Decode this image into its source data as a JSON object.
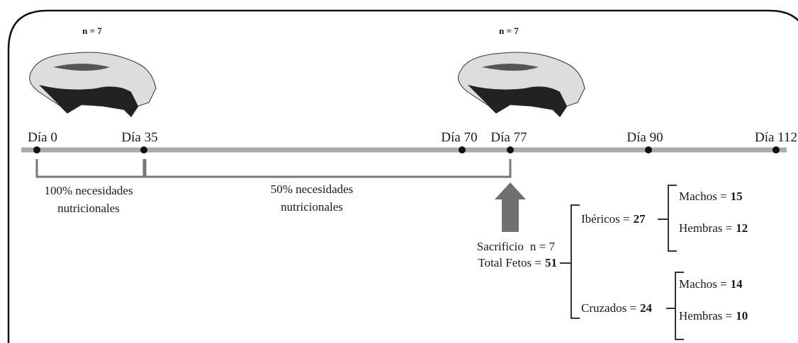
{
  "pigs": [
    {
      "label": "n = 7"
    },
    {
      "label": "n = 7"
    }
  ],
  "timeline": {
    "points": [
      "Día 0",
      "Día 35",
      "Día 70",
      "Día 77",
      "Día 90",
      "Día 112"
    ]
  },
  "periods": [
    {
      "lines": [
        "100% necesidades",
        "nutricionales"
      ]
    },
    {
      "lines": [
        "50% necesidades",
        "nutricionales"
      ]
    }
  ],
  "sacrifice": {
    "label": "Sacrificio",
    "n": "n = 7",
    "total_label": "Total Fetos =",
    "total": 51
  },
  "breeds": [
    {
      "label": "Ibéricos =",
      "count": 27,
      "sexes": [
        {
          "label": "Machos =",
          "count": 15
        },
        {
          "label": "Hembras =",
          "count": 12
        }
      ]
    },
    {
      "label": "Cruzados =",
      "count": 24,
      "sexes": [
        {
          "label": "Machos =",
          "count": 14
        },
        {
          "label": "Hembras =",
          "count": 10
        }
      ]
    }
  ]
}
